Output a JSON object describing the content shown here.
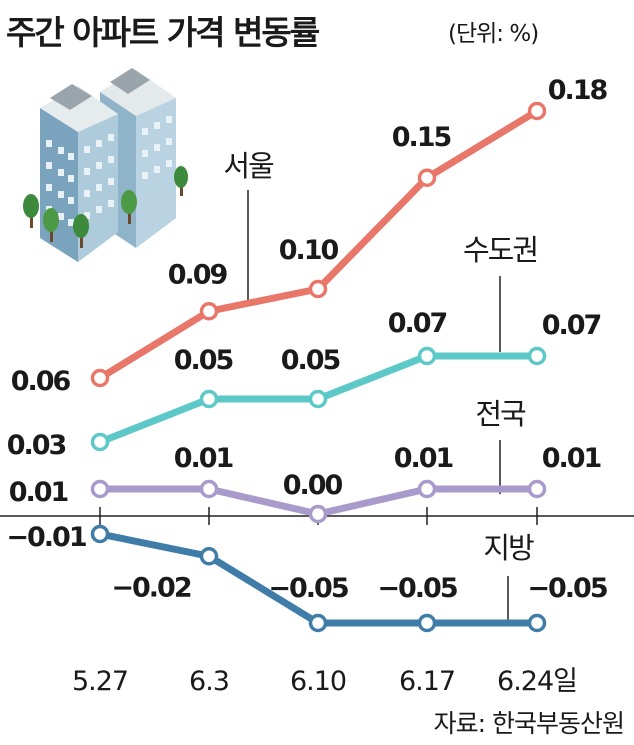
{
  "header": {
    "title": "주간 아파트 가격 변동률",
    "unit": "(단위: %)"
  },
  "footer": {
    "source": "자료: 한국부동산원"
  },
  "chart_data": {
    "type": "line",
    "title": "주간 아파트 가격 변동률",
    "unit": "%",
    "categories": [
      "5.27",
      "6.3",
      "6.10",
      "6.17",
      "6.24일"
    ],
    "series": [
      {
        "name": "서울",
        "values": [
          0.06,
          0.09,
          0.1,
          0.15,
          0.18
        ],
        "labels": [
          "0.06",
          "0.09",
          "0.10",
          "0.15",
          "0.18"
        ],
        "color": "#e8776a"
      },
      {
        "name": "수도권",
        "values": [
          0.03,
          0.05,
          0.05,
          0.07,
          0.07
        ],
        "labels": [
          "0.03",
          "0.05",
          "0.05",
          "0.07",
          "0.07"
        ],
        "color": "#5cc8c8"
      },
      {
        "name": "전국",
        "values": [
          0.01,
          0.01,
          0.0,
          0.01,
          0.01
        ],
        "labels": [
          "0.01",
          "0.01",
          "0.00",
          "0.01",
          "0.01"
        ],
        "color": "#a99acc"
      },
      {
        "name": "지방",
        "values": [
          -0.01,
          -0.02,
          -0.05,
          -0.05,
          -0.05
        ],
        "labels": [
          "−0.01",
          "−0.02",
          "−0.05",
          "−0.05",
          "−0.05"
        ],
        "color": "#3f7ca8"
      }
    ],
    "illustration": "apartment-buildings-with-trees"
  }
}
